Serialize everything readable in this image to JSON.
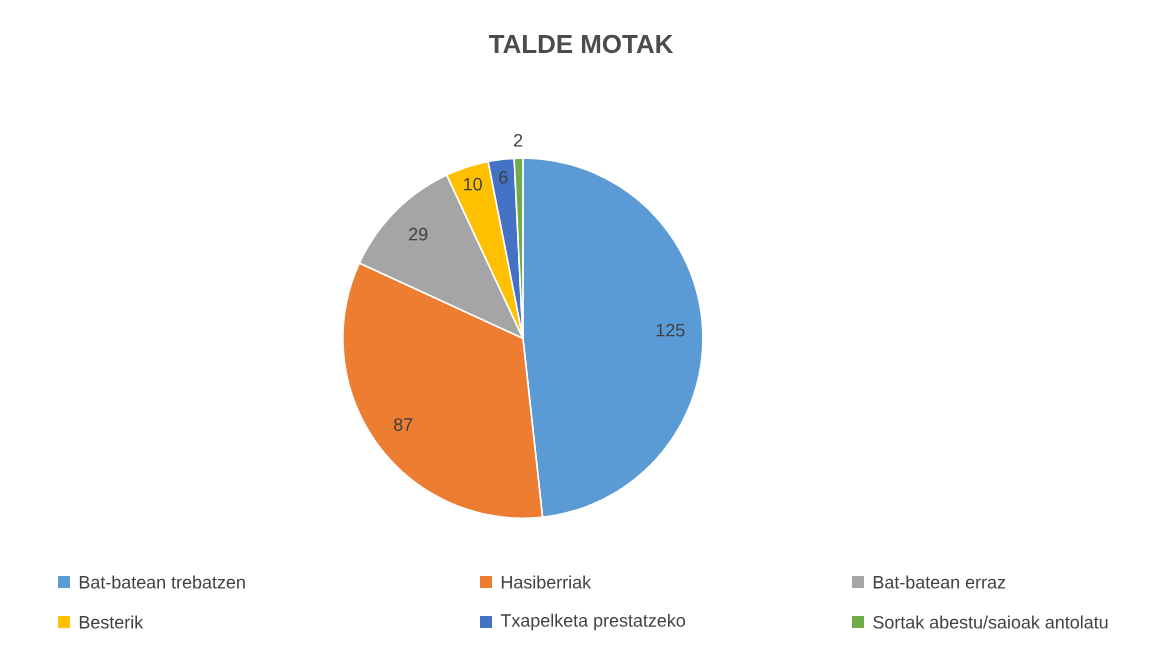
{
  "chart_data": {
    "type": "pie",
    "title": "TALDE MOTAK",
    "categories": [
      "Bat-batean trebatzen",
      "Hasiberriak",
      "Bat-batean erraz",
      "Besterik",
      "Txapelketa prestatzeko",
      "Sortak abestu/saioak antolatu"
    ],
    "values": [
      125,
      87,
      29,
      10,
      6,
      2
    ],
    "colors": [
      "#5b9bd5",
      "#ed7d31",
      "#a5a5a5",
      "#ffc000",
      "#4472c4",
      "#70ad47"
    ],
    "data_labels": true,
    "legend": "bottom"
  }
}
